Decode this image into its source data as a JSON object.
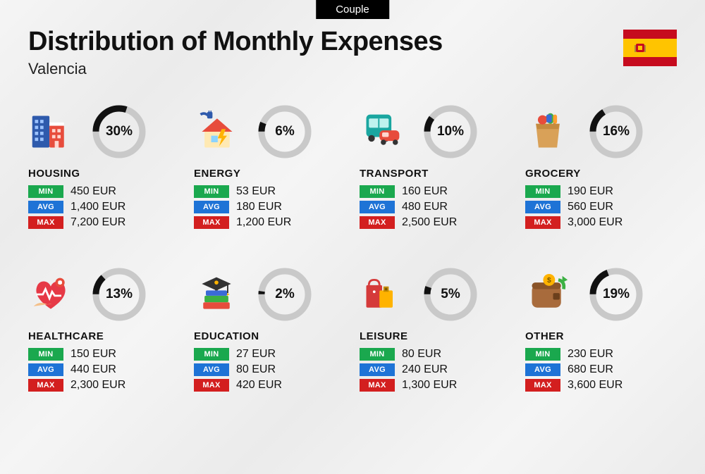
{
  "tab_label": "Couple",
  "title": "Distribution of Monthly Expenses",
  "subtitle": "Valencia",
  "flag": {
    "top_color": "#c60b1e",
    "mid_color": "#ffc400",
    "bottom_color": "#c60b1e"
  },
  "badge_labels": {
    "min": "MIN",
    "avg": "AVG",
    "max": "MAX"
  },
  "badge_colors": {
    "min": "#1aa84e",
    "avg": "#1e73d6",
    "max": "#d31f1f"
  },
  "donut": {
    "fg_color": "#111111",
    "bg_color": "#c9c9c9",
    "stroke_width": 9
  },
  "currency_suffix": " EUR",
  "categories": [
    {
      "name": "HOUSING",
      "pct": 30,
      "min": "450",
      "avg": "1,400",
      "max": "7,200",
      "icon": "housing"
    },
    {
      "name": "ENERGY",
      "pct": 6,
      "min": "53",
      "avg": "180",
      "max": "1,200",
      "icon": "energy"
    },
    {
      "name": "TRANSPORT",
      "pct": 10,
      "min": "160",
      "avg": "480",
      "max": "2,500",
      "icon": "transport"
    },
    {
      "name": "GROCERY",
      "pct": 16,
      "min": "190",
      "avg": "560",
      "max": "3,000",
      "icon": "grocery"
    },
    {
      "name": "HEALTHCARE",
      "pct": 13,
      "min": "150",
      "avg": "440",
      "max": "2,300",
      "icon": "healthcare"
    },
    {
      "name": "EDUCATION",
      "pct": 2,
      "min": "27",
      "avg": "80",
      "max": "420",
      "icon": "education"
    },
    {
      "name": "LEISURE",
      "pct": 5,
      "min": "80",
      "avg": "240",
      "max": "1,300",
      "icon": "leisure"
    },
    {
      "name": "OTHER",
      "pct": 19,
      "min": "230",
      "avg": "680",
      "max": "3,600",
      "icon": "other"
    }
  ]
}
